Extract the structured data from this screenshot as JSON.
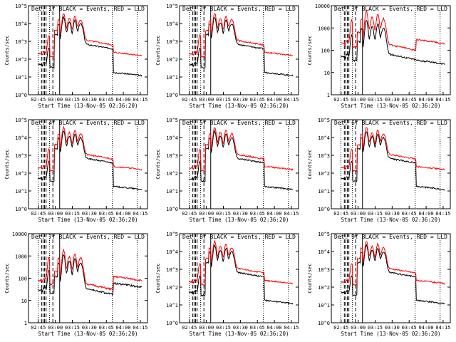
{
  "colors": {
    "events": "#000000",
    "lld": "#ff0000",
    "axis": "#000000",
    "background": "#ffffff"
  },
  "x_ticks": [
    "02:45",
    "03:00",
    "03:15",
    "03:30",
    "03:45",
    "04:00",
    "04:15"
  ],
  "x_label": "Start Time (13-Nov-05 02:36:20)",
  "y_label": "Counts/sec",
  "chart_data": [
    {
      "type": "line",
      "title": "Det. 1f BLACK = Events, RED = LLD",
      "y_scale": "log",
      "y_ticks": [
        "10^0",
        "10^1",
        "10^2",
        "10^3",
        "10^4",
        "10^5"
      ],
      "ylim": [
        1,
        100000
      ],
      "series": [
        {
          "name": "Events",
          "peak": 30000,
          "pre": 50,
          "pre_jump": 400,
          "post": 15
        },
        {
          "name": "LLD",
          "peak": 50000,
          "pre": 200,
          "pre_jump": 2000,
          "post": 200
        }
      ]
    },
    {
      "type": "line",
      "title": "Det. 2f BLACK = Events, RED = LLD",
      "y_scale": "log",
      "y_ticks": [
        "10^0",
        "10^1",
        "10^2",
        "10^3",
        "10^4",
        "10^5"
      ],
      "ylim": [
        1,
        100000
      ],
      "series": [
        {
          "name": "Events",
          "peak": 30000,
          "pre": 50,
          "pre_jump": 400,
          "post": 15
        },
        {
          "name": "LLD",
          "peak": 50000,
          "pre": 200,
          "pre_jump": 2000,
          "post": 200
        }
      ]
    },
    {
      "type": "line",
      "title": "Det. 3f BLACK = Events, RED = LLD",
      "y_scale": "log",
      "y_ticks": [
        "1",
        "10",
        "100",
        "1000",
        "10000"
      ],
      "ylim": [
        1,
        10000
      ],
      "series": [
        {
          "name": "Events",
          "peak": 3000,
          "pre": 50,
          "pre_jump": 400,
          "post": 30
        },
        {
          "name": "LLD",
          "peak": 8000,
          "pre": 200,
          "pre_jump": 2000,
          "post": 250
        }
      ]
    },
    {
      "type": "line",
      "title": "Det. 4f BLACK = Events, RED = LLD",
      "y_scale": "log",
      "y_ticks": [
        "10^0",
        "10^1",
        "10^2",
        "10^3",
        "10^4",
        "10^5"
      ],
      "ylim": [
        1,
        100000
      ],
      "series": [
        {
          "name": "Events",
          "peak": 30000,
          "pre": 50,
          "pre_jump": 400,
          "post": 15
        },
        {
          "name": "LLD",
          "peak": 50000,
          "pre": 200,
          "pre_jump": 2000,
          "post": 200
        }
      ]
    },
    {
      "type": "line",
      "title": "Det. 5f BLACK = Events, RED = LLD",
      "y_scale": "log",
      "y_ticks": [
        "10^0",
        "10^1",
        "10^2",
        "10^3",
        "10^4",
        "10^5"
      ],
      "ylim": [
        1,
        100000
      ],
      "series": [
        {
          "name": "Events",
          "peak": 30000,
          "pre": 50,
          "pre_jump": 400,
          "post": 15
        },
        {
          "name": "LLD",
          "peak": 50000,
          "pre": 200,
          "pre_jump": 2000,
          "post": 200
        }
      ]
    },
    {
      "type": "line",
      "title": "Det. 6f BLACK = Events, RED = LLD",
      "y_scale": "log",
      "y_ticks": [
        "10^0",
        "10^1",
        "10^2",
        "10^3",
        "10^4",
        "10^5"
      ],
      "ylim": [
        1,
        100000
      ],
      "series": [
        {
          "name": "Events",
          "peak": 30000,
          "pre": 50,
          "pre_jump": 400,
          "post": 15
        },
        {
          "name": "LLD",
          "peak": 50000,
          "pre": 200,
          "pre_jump": 2000,
          "post": 200
        }
      ]
    },
    {
      "type": "line",
      "title": "Det. 7f BLACK = Events, RED = LLD",
      "y_scale": "log",
      "y_ticks": [
        "1",
        "10",
        "100",
        "1000",
        "10000"
      ],
      "ylim": [
        1,
        10000
      ],
      "series": [
        {
          "name": "Events",
          "peak": 1500,
          "pre": 30,
          "pre_jump": 200,
          "post": 50
        },
        {
          "name": "LLD",
          "peak": 2500,
          "pre": 80,
          "pre_jump": 800,
          "post": 100
        }
      ]
    },
    {
      "type": "line",
      "title": "Det. 8f BLACK = Events, RED = LLD",
      "y_scale": "log",
      "y_ticks": [
        "10^0",
        "10^1",
        "10^2",
        "10^3",
        "10^4",
        "10^5"
      ],
      "ylim": [
        1,
        100000
      ],
      "series": [
        {
          "name": "Events",
          "peak": 30000,
          "pre": 50,
          "pre_jump": 400,
          "post": 15
        },
        {
          "name": "LLD",
          "peak": 50000,
          "pre": 200,
          "pre_jump": 2000,
          "post": 200
        }
      ]
    },
    {
      "type": "line",
      "title": "Det. 9f BLACK = Events, RED = LLD",
      "y_scale": "log",
      "y_ticks": [
        "10^0",
        "10^1",
        "10^2",
        "10^3",
        "10^4",
        "10^5"
      ],
      "ylim": [
        1,
        100000
      ],
      "series": [
        {
          "name": "Events",
          "peak": 30000,
          "pre": 50,
          "pre_jump": 400,
          "post": 15
        },
        {
          "name": "LLD",
          "peak": 50000,
          "pre": 200,
          "pre_jump": 2000,
          "post": 200
        }
      ]
    }
  ]
}
